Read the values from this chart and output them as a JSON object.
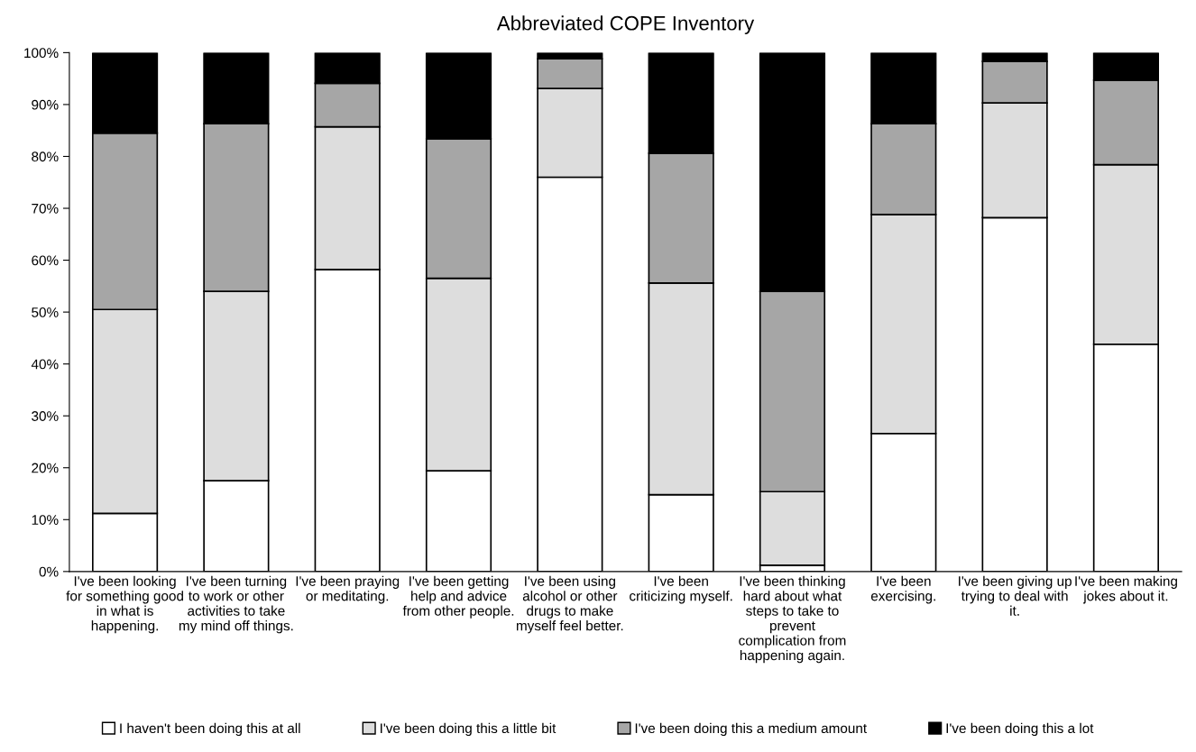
{
  "chart_data": {
    "type": "bar",
    "title": "Abbreviated COPE Inventory",
    "stacked": true,
    "categories": [
      "I've been looking for something good in what is happening.",
      "I've been turning to work or other activities to take my mind off things.",
      "I've been praying or meditating.",
      "I've been getting help and advice from other people.",
      "I've been using alcohol or other drugs to make myself feel better.",
      "I've been criticizing myself.",
      "I've been thinking hard about what steps to take to prevent complication from happening again.",
      "I've been exercising.",
      "I've been giving up trying to deal with it.",
      "I've been making jokes about it."
    ],
    "series": [
      {
        "name": "I haven't been doing this at all",
        "color": "#ffffff",
        "values": [
          11.2,
          17.5,
          58.2,
          19.4,
          76.0,
          14.8,
          1.2,
          26.6,
          68.2,
          43.8
        ]
      },
      {
        "name": "I've been doing this a little bit",
        "color": "#dddddd",
        "values": [
          39.3,
          36.5,
          27.5,
          37.1,
          17.1,
          40.8,
          14.2,
          42.2,
          22.1,
          34.6
        ]
      },
      {
        "name": "I've been doing this a medium amount",
        "color": "#a6a6a6",
        "values": [
          34.0,
          32.3,
          8.4,
          26.9,
          5.7,
          25.0,
          38.6,
          17.5,
          8.0,
          16.3
        ]
      },
      {
        "name": "I've been doing this a lot",
        "color": "#000000",
        "values": [
          15.5,
          13.7,
          5.9,
          16.6,
          1.2,
          19.4,
          46.0,
          13.7,
          1.7,
          5.3
        ]
      }
    ],
    "ylim": [
      0,
      100
    ],
    "yticks": [
      {
        "value": 0,
        "label": "0%"
      },
      {
        "value": 10,
        "label": "10%"
      },
      {
        "value": 20,
        "label": "20%"
      },
      {
        "value": 30,
        "label": "30%"
      },
      {
        "value": 40,
        "label": "40%"
      },
      {
        "value": 50,
        "label": "50%"
      },
      {
        "value": 60,
        "label": "60%"
      },
      {
        "value": 70,
        "label": "70%"
      },
      {
        "value": 80,
        "label": "80%"
      },
      {
        "value": 90,
        "label": "90%"
      },
      {
        "value": 100,
        "label": "100%"
      }
    ],
    "grid": false,
    "legend": "bottom"
  }
}
